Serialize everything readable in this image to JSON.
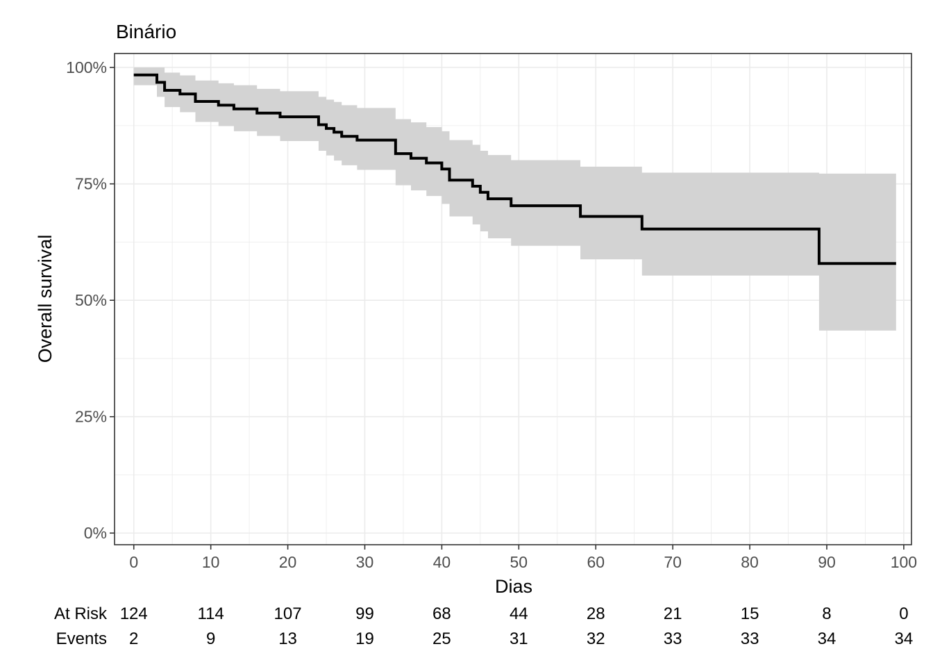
{
  "chart_data": {
    "type": "line",
    "subtype": "kaplan-meier step curve with confidence band",
    "title": "Binário",
    "xlabel": "Dias",
    "ylabel": "Overall survival",
    "xlim": [
      -2.5,
      101
    ],
    "ylim": [
      -0.025,
      1.03
    ],
    "x_ticks": [
      0,
      10,
      20,
      30,
      40,
      50,
      60,
      70,
      80,
      90,
      100
    ],
    "x_tick_labels": [
      "0",
      "10",
      "20",
      "30",
      "40",
      "50",
      "60",
      "70",
      "80",
      "90",
      "100"
    ],
    "y_ticks": [
      0,
      0.25,
      0.5,
      0.75,
      1.0
    ],
    "y_tick_labels": [
      "0%",
      "25%",
      "50%",
      "75%",
      "100%"
    ],
    "grid": true,
    "colors": {
      "line": "#000000",
      "band": "#d3d3d3",
      "grid": "#ebebeb",
      "panel_border": "#333333",
      "tick_text": "#4d4d4d"
    },
    "series": [
      {
        "step_x": [
          0,
          3,
          4,
          6,
          8,
          11,
          13,
          16,
          19,
          24,
          25,
          26,
          27,
          29,
          34,
          36,
          38,
          40,
          41,
          44,
          45,
          46,
          49,
          58,
          66,
          89,
          99
        ],
        "survival": [
          0.984,
          0.968,
          0.951,
          0.943,
          0.927,
          0.919,
          0.911,
          0.902,
          0.894,
          0.877,
          0.869,
          0.861,
          0.852,
          0.844,
          0.815,
          0.805,
          0.795,
          0.782,
          0.758,
          0.745,
          0.732,
          0.718,
          0.703,
          0.68,
          0.653,
          0.579,
          0.579
        ],
        "lower": [
          0.962,
          0.937,
          0.915,
          0.904,
          0.883,
          0.874,
          0.863,
          0.853,
          0.842,
          0.821,
          0.811,
          0.8,
          0.79,
          0.78,
          0.747,
          0.736,
          0.724,
          0.707,
          0.68,
          0.663,
          0.648,
          0.633,
          0.617,
          0.588,
          0.553,
          0.435,
          0.435
        ],
        "upper": [
          1.0,
          1.0,
          0.989,
          0.983,
          0.972,
          0.966,
          0.962,
          0.954,
          0.949,
          0.937,
          0.931,
          0.926,
          0.919,
          0.913,
          0.889,
          0.882,
          0.872,
          0.863,
          0.844,
          0.834,
          0.821,
          0.812,
          0.801,
          0.787,
          0.774,
          0.772,
          0.772
        ]
      }
    ],
    "risk_table": {
      "row_labels": [
        "At Risk",
        "Events"
      ],
      "times": [
        0,
        10,
        20,
        30,
        40,
        50,
        60,
        70,
        80,
        90,
        100
      ],
      "at_risk": [
        "124",
        "114",
        "107",
        "99",
        "68",
        "44",
        "28",
        "21",
        "15",
        "8",
        "0"
      ],
      "events": [
        "2",
        "9",
        "13",
        "19",
        "25",
        "31",
        "32",
        "33",
        "33",
        "34",
        "34"
      ]
    }
  }
}
